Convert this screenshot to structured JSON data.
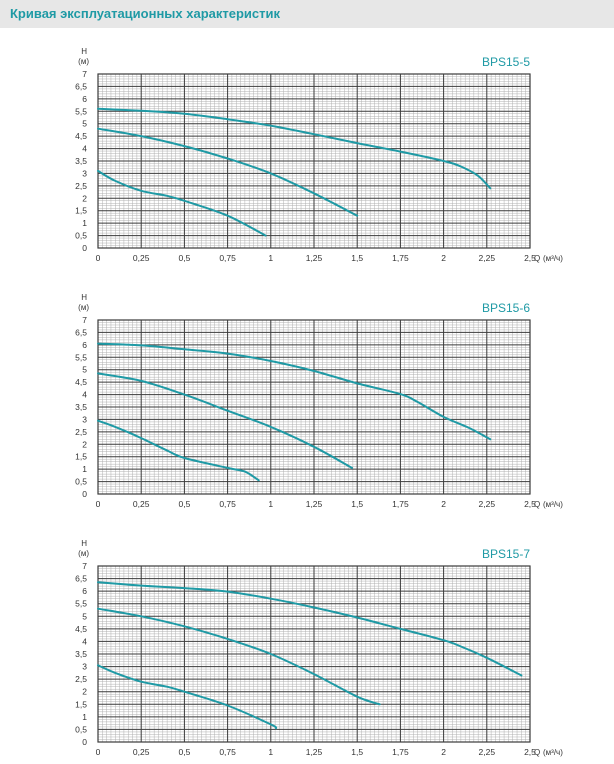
{
  "header": {
    "title": "Кривая эксплуатационных характеристик",
    "background": "#e7e7e7",
    "title_color": "#1f9aa5"
  },
  "colors": {
    "curve": "#1f9aa5",
    "grid_major": "#3a3a3a",
    "grid_minor": "#b0b0b0",
    "chart_name": "#1f9aa5"
  },
  "chart_data": [
    {
      "type": "line",
      "name": "BPS15-5",
      "ylabel_top": "H",
      "ylabel_unit": "(м)",
      "xlabel": "Q",
      "xlabel_unit": "(м³/ч)",
      "xlim": [
        0,
        2.5
      ],
      "ylim": [
        0,
        7
      ],
      "x_ticks": [
        "0",
        "0,25",
        "0,5",
        "0,75",
        "1",
        "1,25",
        "1,5",
        "1,75",
        "2",
        "2,25",
        "2,5"
      ],
      "y_ticks": [
        "0",
        "0,5",
        "1",
        "1,5",
        "2",
        "2,5",
        "3",
        "3,5",
        "4",
        "4,5",
        "5",
        "5,5",
        "6",
        "6,5",
        "7"
      ],
      "grid": "on",
      "series": [
        {
          "x": [
            0,
            0.25,
            0.5,
            0.75,
            1.0,
            1.25,
            1.5,
            1.75,
            2.0,
            2.1,
            2.2,
            2.27
          ],
          "y": [
            5.6,
            5.52,
            5.4,
            5.18,
            4.92,
            4.58,
            4.22,
            3.88,
            3.5,
            3.28,
            2.9,
            2.4
          ]
        },
        {
          "x": [
            0,
            0.25,
            0.5,
            0.75,
            1.0,
            1.25,
            1.5
          ],
          "y": [
            4.8,
            4.5,
            4.1,
            3.6,
            3.0,
            2.2,
            1.3
          ]
        },
        {
          "x": [
            0,
            0.1,
            0.25,
            0.4,
            0.5,
            0.75,
            0.97
          ],
          "y": [
            3.1,
            2.7,
            2.3,
            2.1,
            1.9,
            1.3,
            0.5
          ]
        }
      ]
    },
    {
      "type": "line",
      "name": "BPS15-6",
      "ylabel_top": "H",
      "ylabel_unit": "(м)",
      "xlabel": "Q",
      "xlabel_unit": "(м³/ч)",
      "xlim": [
        0,
        2.5
      ],
      "ylim": [
        0,
        7
      ],
      "x_ticks": [
        "0",
        "0,25",
        "0,5",
        "0,75",
        "1",
        "1,25",
        "1,5",
        "1,75",
        "2",
        "2,25",
        "2,5"
      ],
      "y_ticks": [
        "0",
        "0,5",
        "1",
        "1,5",
        "2",
        "2,5",
        "3",
        "3,5",
        "4",
        "4,5",
        "5",
        "5,5",
        "6",
        "6,5",
        "7"
      ],
      "grid": "on",
      "series": [
        {
          "x": [
            0,
            0.25,
            0.5,
            0.75,
            1.0,
            1.25,
            1.5,
            1.75,
            1.85,
            2.0,
            2.15,
            2.27
          ],
          "y": [
            6.05,
            5.98,
            5.82,
            5.65,
            5.35,
            4.95,
            4.45,
            4.02,
            3.7,
            3.1,
            2.65,
            2.2
          ]
        },
        {
          "x": [
            0,
            0.25,
            0.5,
            0.75,
            1.0,
            1.25,
            1.47
          ],
          "y": [
            4.85,
            4.55,
            4.0,
            3.35,
            2.7,
            1.9,
            1.05
          ]
        },
        {
          "x": [
            0,
            0.1,
            0.25,
            0.4,
            0.5,
            0.75,
            0.85,
            0.93
          ],
          "y": [
            2.95,
            2.7,
            2.25,
            1.75,
            1.45,
            1.05,
            0.9,
            0.55
          ]
        }
      ]
    },
    {
      "type": "line",
      "name": "BPS15-7",
      "ylabel_top": "H",
      "ylabel_unit": "(м)",
      "xlabel": "Q",
      "xlabel_unit": "(м³/ч)",
      "xlim": [
        0,
        2.5
      ],
      "ylim": [
        0,
        7
      ],
      "x_ticks": [
        "0",
        "0,25",
        "0,5",
        "0,75",
        "1",
        "1,25",
        "1,5",
        "1,75",
        "2",
        "2,25",
        "2,5"
      ],
      "y_ticks": [
        "0",
        "0,5",
        "1",
        "1,5",
        "2",
        "2,5",
        "3",
        "3,5",
        "4",
        "4,5",
        "5",
        "5,5",
        "6",
        "6,5",
        "7"
      ],
      "grid": "on",
      "series": [
        {
          "x": [
            0,
            0.25,
            0.5,
            0.75,
            1.0,
            1.25,
            1.5,
            1.75,
            2.0,
            2.1,
            2.25,
            2.45
          ],
          "y": [
            6.35,
            6.22,
            6.12,
            5.98,
            5.7,
            5.35,
            4.95,
            4.5,
            4.05,
            3.8,
            3.35,
            2.65
          ]
        },
        {
          "x": [
            0,
            0.25,
            0.5,
            0.75,
            1.0,
            1.25,
            1.5,
            1.63
          ],
          "y": [
            5.3,
            5.0,
            4.6,
            4.1,
            3.5,
            2.7,
            1.8,
            1.5
          ]
        },
        {
          "x": [
            0,
            0.1,
            0.25,
            0.4,
            0.5,
            0.75,
            1.0,
            1.03
          ],
          "y": [
            3.05,
            2.75,
            2.4,
            2.2,
            2.0,
            1.45,
            0.7,
            0.55
          ]
        }
      ]
    }
  ]
}
